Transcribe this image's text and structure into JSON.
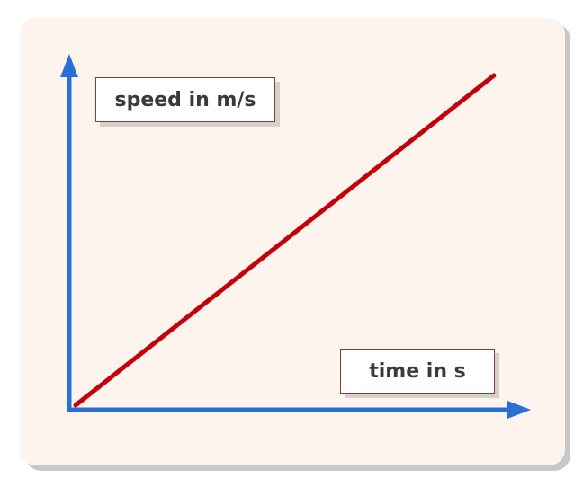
{
  "chart_data": {
    "type": "line",
    "xlabel": "time in s",
    "ylabel": "speed in m/s",
    "series": [
      {
        "points": [
          [
            0,
            0
          ],
          [
            1,
            1
          ]
        ],
        "color": "#c4000a"
      }
    ],
    "xlim": [
      0,
      1.1
    ],
    "ylim": [
      0,
      1.02
    ],
    "grid": false,
    "axis_color": "#2a6fd6",
    "line_style": "solid"
  }
}
